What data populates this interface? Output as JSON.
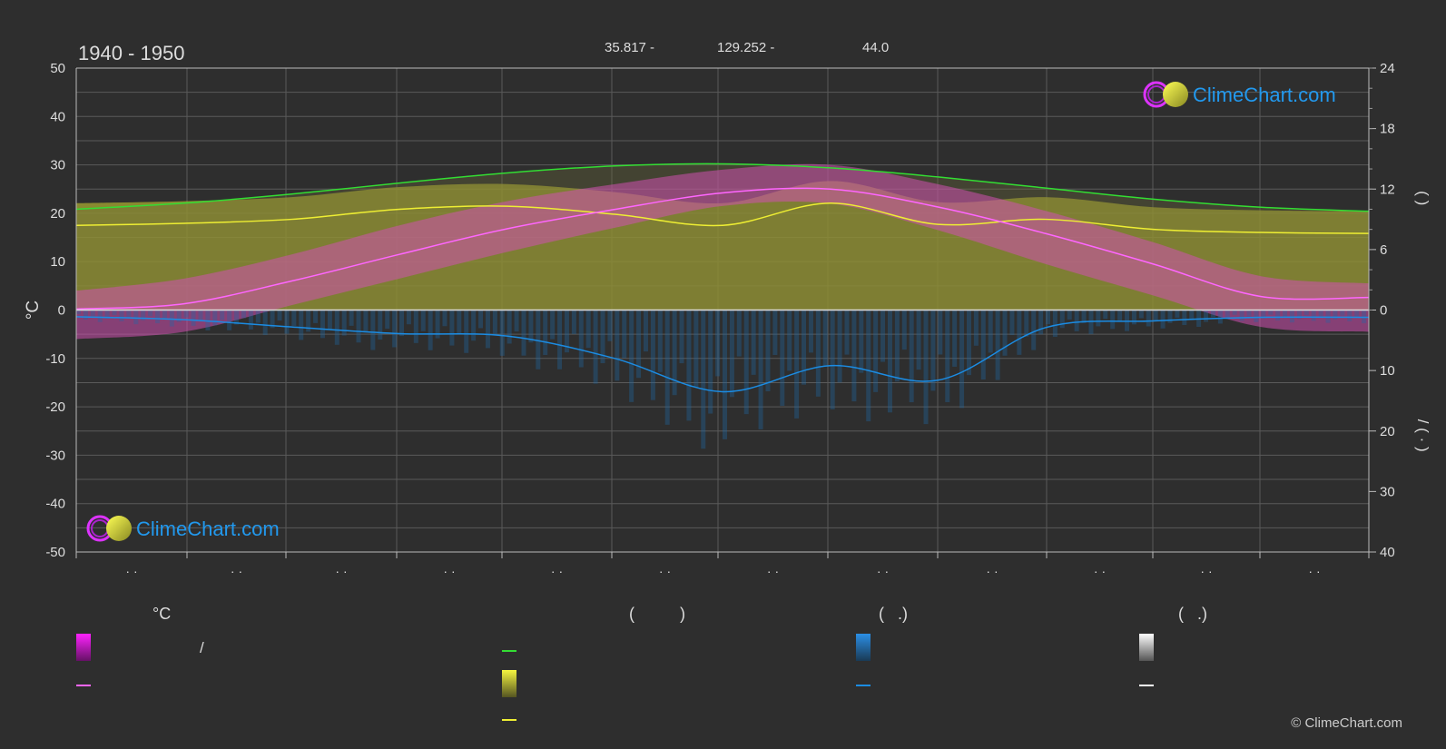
{
  "header": {
    "period": "1940 - 1950",
    "lat": "35.817 -",
    "lon": "129.252 -",
    "elev": "44.0"
  },
  "brand": {
    "name": "ClimeChart.com",
    "copyright": "© ClimeChart.com"
  },
  "colors": {
    "background": "#2e2e2e",
    "temp_band": "#ff00ff",
    "daylight": "#33dd33",
    "sunshine": "#eeee33",
    "avg_temp": "#ff66ff",
    "rain": "#1b8ce3",
    "brand_blue": "#2299ee"
  },
  "chart_data": {
    "type": "line",
    "x_ticks": [
      "· ·",
      "· ·",
      "· ·",
      "· ·",
      "· ·",
      "· ·",
      "· ·",
      "· ·",
      "· ·",
      "· ·",
      "· ·",
      "· ·"
    ],
    "y_left": {
      "label": "°C",
      "min": -50,
      "max": 50,
      "ticks": [
        50,
        40,
        30,
        20,
        10,
        0,
        -10,
        -20,
        -30,
        -40,
        -50
      ]
    },
    "y_right_top": {
      "label": "(     )",
      "min": 0,
      "max": 24,
      "ticks": [
        24,
        18,
        12,
        6,
        0
      ]
    },
    "y_right_bottom": {
      "label": "/     ( · )",
      "min": 0,
      "max": 40,
      "ticks": [
        10,
        20,
        30,
        40
      ]
    },
    "grid": true,
    "series": [
      {
        "key": "daylight",
        "color": "#33dd33",
        "values": [
          10.0,
          10.6,
          11.5,
          12.6,
          13.6,
          14.3,
          14.5,
          14.1,
          13.2,
          12.1,
          11.0,
          10.2,
          9.8
        ]
      },
      {
        "key": "sunshine",
        "color": "#eeee33",
        "values": [
          8.4,
          8.6,
          9.0,
          10.0,
          10.3,
          9.5,
          8.4,
          10.6,
          8.5,
          9.0,
          8.0,
          7.7,
          7.6
        ]
      },
      {
        "key": "avg_temp",
        "color": "#ff66ff",
        "values": [
          0.2,
          1.3,
          6.0,
          11.5,
          16.8,
          20.8,
          24.2,
          25.0,
          21.3,
          15.8,
          9.5,
          2.8,
          2.6
        ]
      },
      {
        "key": "precipitation",
        "color": "#1b8ce3",
        "values": [
          1.1,
          1.6,
          2.8,
          3.9,
          4.3,
          8.0,
          13.5,
          9.2,
          11.6,
          2.9,
          1.8,
          1.2,
          1.2
        ]
      }
    ],
    "temp_band": {
      "max": [
        4.0,
        6.5,
        11.5,
        17.5,
        22.5,
        26.0,
        29.0,
        30.0,
        26.0,
        20.5,
        14.0,
        7.0,
        5.5
      ],
      "min": [
        -6.0,
        -4.5,
        1.0,
        6.5,
        12.0,
        17.0,
        21.5,
        22.0,
        16.5,
        9.5,
        3.0,
        -3.5,
        -4.5
      ]
    }
  },
  "legend": {
    "col1": {
      "header": "°C",
      "item1": "/"
    },
    "col2": {
      "header": "(          )"
    },
    "col3": {
      "header": "(   .)"
    },
    "col4": {
      "header": "(   .)"
    }
  }
}
